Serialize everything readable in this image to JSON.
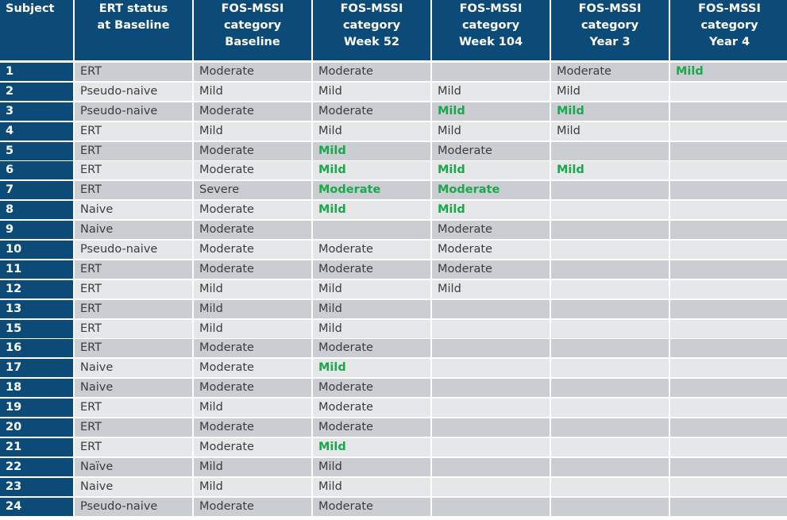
{
  "colors": {
    "header": "#0c4a78",
    "row_dark": "#cacdd2",
    "row_light": "#e6e7e9",
    "improved_text": "#1aa84a",
    "text": "#3c3c3c"
  },
  "headers": [
    "Subject",
    "ERT status\nat Baseline",
    "FOS-MSSI\ncategory\nBaseline",
    "FOS-MSSI\ncategory\nWeek 52",
    "FOS-MSSI\ncategory\nWeek 104",
    "FOS-MSSI\ncategory\nYear 3",
    "FOS-MSSI\ncategory\nYear 4"
  ],
  "rows": [
    {
      "subject": "1",
      "cells": [
        {
          "v": "ERT"
        },
        {
          "v": "Moderate"
        },
        {
          "v": "Moderate"
        },
        {
          "v": ""
        },
        {
          "v": "Moderate"
        },
        {
          "v": "Mild",
          "hl": true
        }
      ]
    },
    {
      "subject": "2",
      "cells": [
        {
          "v": "Pseudo-naive"
        },
        {
          "v": "Mild"
        },
        {
          "v": "Mild"
        },
        {
          "v": "Mild"
        },
        {
          "v": "Mild"
        },
        {
          "v": ""
        }
      ]
    },
    {
      "subject": "3",
      "cells": [
        {
          "v": "Pseudo-naive"
        },
        {
          "v": "Moderate"
        },
        {
          "v": "Moderate"
        },
        {
          "v": "Mild",
          "hl": true
        },
        {
          "v": "Mild",
          "hl": true
        },
        {
          "v": ""
        }
      ]
    },
    {
      "subject": "4",
      "cells": [
        {
          "v": "ERT"
        },
        {
          "v": "Mild"
        },
        {
          "v": "Mild"
        },
        {
          "v": "Mild"
        },
        {
          "v": "Mild"
        },
        {
          "v": ""
        }
      ]
    },
    {
      "subject": "5",
      "cells": [
        {
          "v": "ERT"
        },
        {
          "v": "Moderate"
        },
        {
          "v": "Mild",
          "hl": true
        },
        {
          "v": "Moderate"
        },
        {
          "v": ""
        },
        {
          "v": ""
        }
      ]
    },
    {
      "subject": "6",
      "cells": [
        {
          "v": "ERT"
        },
        {
          "v": "Moderate"
        },
        {
          "v": "Mild",
          "hl": true
        },
        {
          "v": "Mild",
          "hl": true
        },
        {
          "v": "Mild",
          "hl": true
        },
        {
          "v": ""
        }
      ]
    },
    {
      "subject": "7",
      "cells": [
        {
          "v": "ERT"
        },
        {
          "v": "Severe"
        },
        {
          "v": "Moderate",
          "hl": true
        },
        {
          "v": "Moderate",
          "hl": true
        },
        {
          "v": ""
        },
        {
          "v": ""
        }
      ]
    },
    {
      "subject": "8",
      "cells": [
        {
          "v": "Naive"
        },
        {
          "v": "Moderate"
        },
        {
          "v": "Mild",
          "hl": true
        },
        {
          "v": "Mild",
          "hl": true
        },
        {
          "v": ""
        },
        {
          "v": ""
        }
      ]
    },
    {
      "subject": "9",
      "cells": [
        {
          "v": "Naive"
        },
        {
          "v": "Moderate"
        },
        {
          "v": ""
        },
        {
          "v": "Moderate"
        },
        {
          "v": ""
        },
        {
          "v": ""
        }
      ]
    },
    {
      "subject": "10",
      "cells": [
        {
          "v": "Pseudo-naive"
        },
        {
          "v": "Moderate"
        },
        {
          "v": "Moderate"
        },
        {
          "v": "Moderate"
        },
        {
          "v": ""
        },
        {
          "v": ""
        }
      ]
    },
    {
      "subject": "11",
      "cells": [
        {
          "v": "ERT"
        },
        {
          "v": "Moderate"
        },
        {
          "v": "Moderate"
        },
        {
          "v": "Moderate"
        },
        {
          "v": ""
        },
        {
          "v": ""
        }
      ]
    },
    {
      "subject": "12",
      "cells": [
        {
          "v": "ERT"
        },
        {
          "v": "Mild"
        },
        {
          "v": "Mild"
        },
        {
          "v": "Mild"
        },
        {
          "v": ""
        },
        {
          "v": ""
        }
      ]
    },
    {
      "subject": "13",
      "cells": [
        {
          "v": "ERT"
        },
        {
          "v": "Mild"
        },
        {
          "v": "Mild"
        },
        {
          "v": ""
        },
        {
          "v": ""
        },
        {
          "v": ""
        }
      ]
    },
    {
      "subject": "15",
      "cells": [
        {
          "v": "ERT"
        },
        {
          "v": "Mild"
        },
        {
          "v": "Mild"
        },
        {
          "v": ""
        },
        {
          "v": ""
        },
        {
          "v": ""
        }
      ]
    },
    {
      "subject": "16",
      "cells": [
        {
          "v": "ERT"
        },
        {
          "v": "Moderate"
        },
        {
          "v": "Moderate"
        },
        {
          "v": ""
        },
        {
          "v": ""
        },
        {
          "v": ""
        }
      ]
    },
    {
      "subject": "17",
      "cells": [
        {
          "v": "Naive"
        },
        {
          "v": "Moderate"
        },
        {
          "v": "Mild",
          "hl": true
        },
        {
          "v": ""
        },
        {
          "v": ""
        },
        {
          "v": ""
        }
      ]
    },
    {
      "subject": "18",
      "cells": [
        {
          "v": "Naive"
        },
        {
          "v": "Moderate"
        },
        {
          "v": "Moderate"
        },
        {
          "v": ""
        },
        {
          "v": ""
        },
        {
          "v": ""
        }
      ]
    },
    {
      "subject": "19",
      "cells": [
        {
          "v": "ERT"
        },
        {
          "v": "Mild"
        },
        {
          "v": "Moderate"
        },
        {
          "v": ""
        },
        {
          "v": ""
        },
        {
          "v": ""
        }
      ]
    },
    {
      "subject": "20",
      "cells": [
        {
          "v": "ERT"
        },
        {
          "v": "Moderate"
        },
        {
          "v": "Moderate"
        },
        {
          "v": ""
        },
        {
          "v": ""
        },
        {
          "v": ""
        }
      ]
    },
    {
      "subject": "21",
      "cells": [
        {
          "v": "ERT"
        },
        {
          "v": "Moderate"
        },
        {
          "v": "Mild",
          "hl": true
        },
        {
          "v": ""
        },
        {
          "v": ""
        },
        {
          "v": ""
        }
      ]
    },
    {
      "subject": "22",
      "cells": [
        {
          "v": "Naïve"
        },
        {
          "v": "Mild"
        },
        {
          "v": "Mild"
        },
        {
          "v": ""
        },
        {
          "v": ""
        },
        {
          "v": ""
        }
      ]
    },
    {
      "subject": "23",
      "cells": [
        {
          "v": "Naive"
        },
        {
          "v": "Mild"
        },
        {
          "v": "Mild"
        },
        {
          "v": ""
        },
        {
          "v": ""
        },
        {
          "v": ""
        }
      ]
    },
    {
      "subject": "24",
      "cells": [
        {
          "v": "Pseudo-naive"
        },
        {
          "v": "Moderate"
        },
        {
          "v": "Moderate"
        },
        {
          "v": ""
        },
        {
          "v": ""
        },
        {
          "v": ""
        }
      ]
    }
  ]
}
